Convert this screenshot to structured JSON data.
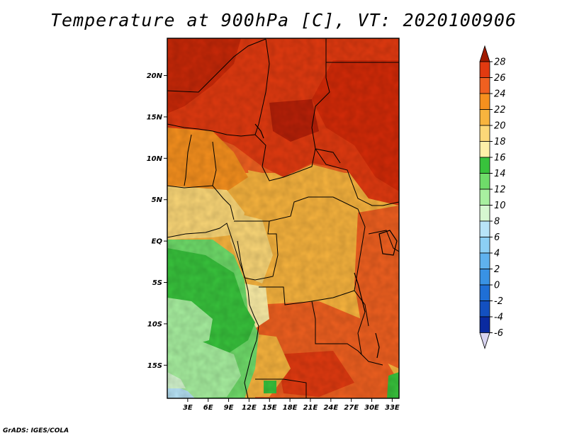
{
  "title": "Temperature at 900hPa [C], VT: 2020100906",
  "credit": "GrADS: IGES/COLA",
  "map": {
    "lat_labels": [
      "20N",
      "15N",
      "10N",
      "5N",
      "EQ",
      "5S",
      "10S",
      "15S"
    ],
    "lat_values": [
      20,
      15,
      10,
      5,
      0,
      -5,
      -10,
      -15
    ],
    "lon_labels": [
      "3E",
      "6E",
      "9E",
      "12E",
      "15E",
      "18E",
      "21E",
      "24E",
      "27E",
      "30E",
      "33E"
    ],
    "lon_values": [
      3,
      6,
      9,
      12,
      15,
      18,
      21,
      24,
      27,
      30,
      33
    ],
    "lon_range": [
      0,
      34
    ],
    "lat_range": [
      -19,
      24.5
    ]
  },
  "colorbar": {
    "labels": [
      "28",
      "26",
      "24",
      "22",
      "20",
      "18",
      "16",
      "14",
      "12",
      "10",
      "8",
      "6",
      "4",
      "2",
      "0",
      "-2",
      "-4",
      "-6"
    ],
    "colors": [
      "#a01a00",
      "#e23a10",
      "#f06020",
      "#f6901e",
      "#f8b43e",
      "#fcd878",
      "#fef0a8",
      "#38c33c",
      "#6fdc6a",
      "#a8f0a0",
      "#d6f8d0",
      "#b8e4f8",
      "#8ccff4",
      "#5fb2ee",
      "#3992e4",
      "#1f6fd6",
      "#1350c0",
      "#0a2aa0",
      "#0a0a6a"
    ]
  }
}
